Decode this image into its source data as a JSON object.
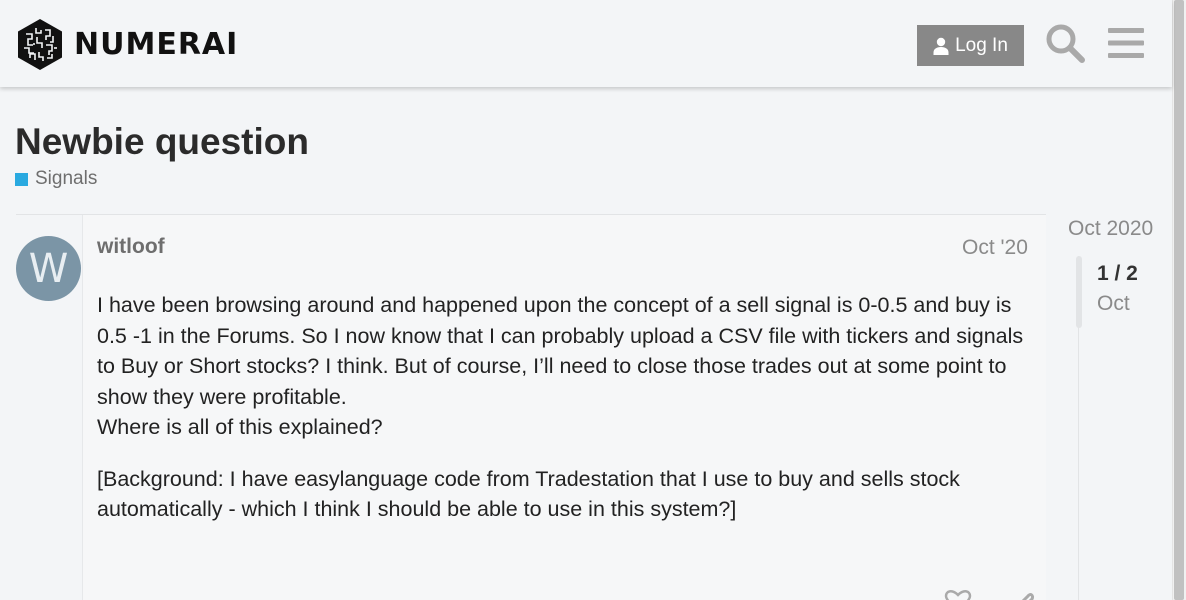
{
  "header": {
    "brand": "NUMERAI",
    "login_label": "Log In"
  },
  "topic": {
    "title": "Newbie question",
    "category": "Signals",
    "category_color": "#29a9e0"
  },
  "post": {
    "avatar_letter": "W",
    "username": "witloof",
    "date": "Oct '20",
    "paragraphs": [
      "I have been browsing around and happened upon the concept of a sell signal is 0-0.5 and buy is 0.5 -1 in the Forums. So I now know that I can probably upload a CSV file with tickers and signals to Buy or Short stocks? I think. But of course, I’ll need to close those trades out at some point to show they were profitable.",
      "Where is all of this explained?",
      "[Background: I have easylanguage code from Tradestation that I use to buy and sells stock automatically - which I think I should be able to use in this system?]"
    ]
  },
  "timeline": {
    "start_date": "Oct 2020",
    "position": "1 / 2",
    "current_date": "Oct"
  },
  "icons": {
    "logo": "numerai-logo-icon",
    "user": "user-icon",
    "search": "search-icon",
    "menu": "hamburger-menu-icon",
    "like": "heart-icon",
    "link": "link-icon"
  }
}
